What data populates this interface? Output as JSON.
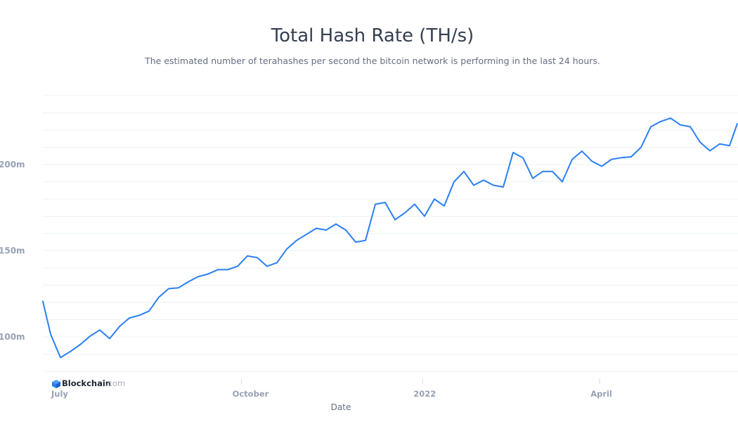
{
  "chart_data": {
    "type": "line",
    "title": "Total Hash Rate (TH/s)",
    "subtitle": "The estimated number of terahashes per second the bitcoin network is performing in the last 24 hours.",
    "xlabel": "Date",
    "ylabel": "",
    "x_tick_labels": [
      {
        "date": "2021-07-01",
        "label": "July"
      },
      {
        "date": "2021-10-01",
        "label": "October"
      },
      {
        "date": "2022-01-01",
        "label": "2022"
      },
      {
        "date": "2022-04-01",
        "label": "April"
      }
    ],
    "y_tick_labels": [
      {
        "value": 100,
        "label": "100m"
      },
      {
        "value": 150,
        "label": "150m"
      },
      {
        "value": 200,
        "label": "200m"
      }
    ],
    "y_unit": "millions TH/s",
    "ylim": [
      80,
      240
    ],
    "xlim": [
      "2021-06-22",
      "2022-06-10"
    ],
    "grid": true,
    "grid_step": 20,
    "line_color": "#2a7ff5",
    "series": [
      {
        "points": [
          [
            "2021-06-22",
            121
          ],
          [
            "2021-06-26",
            101.6
          ],
          [
            "2021-07-01",
            88
          ],
          [
            "2021-07-06",
            91.5
          ],
          [
            "2021-07-11",
            95.5
          ],
          [
            "2021-07-16",
            100.4
          ],
          [
            "2021-07-21",
            104
          ],
          [
            "2021-07-26",
            99
          ],
          [
            "2021-07-31",
            106
          ],
          [
            "2021-08-05",
            111
          ],
          [
            "2021-08-10",
            112.5
          ],
          [
            "2021-08-15",
            115
          ],
          [
            "2021-08-20",
            123
          ],
          [
            "2021-08-25",
            128
          ],
          [
            "2021-08-30",
            128.5
          ],
          [
            "2021-09-04",
            132
          ],
          [
            "2021-09-09",
            135
          ],
          [
            "2021-09-14",
            136.5
          ],
          [
            "2021-09-19",
            139
          ],
          [
            "2021-09-24",
            139
          ],
          [
            "2021-09-29",
            141
          ],
          [
            "2021-10-04",
            147
          ],
          [
            "2021-10-09",
            146
          ],
          [
            "2021-10-14",
            141
          ],
          [
            "2021-10-19",
            143
          ],
          [
            "2021-10-24",
            151
          ],
          [
            "2021-10-29",
            156
          ],
          [
            "2021-11-03",
            159.5
          ],
          [
            "2021-11-08",
            163
          ],
          [
            "2021-11-13",
            162
          ],
          [
            "2021-11-18",
            165.5
          ],
          [
            "2021-11-23",
            162
          ],
          [
            "2021-11-28",
            155
          ],
          [
            "2021-12-03",
            156
          ],
          [
            "2021-12-08",
            177
          ],
          [
            "2021-12-13",
            178
          ],
          [
            "2021-12-18",
            168
          ],
          [
            "2021-12-23",
            172
          ],
          [
            "2021-12-28",
            177
          ],
          [
            "2022-01-02",
            170
          ],
          [
            "2022-01-07",
            180
          ],
          [
            "2022-01-12",
            176
          ],
          [
            "2022-01-17",
            190
          ],
          [
            "2022-01-22",
            196
          ],
          [
            "2022-01-27",
            188
          ],
          [
            "2022-02-01",
            191
          ],
          [
            "2022-02-06",
            188
          ],
          [
            "2022-02-11",
            187
          ],
          [
            "2022-02-16",
            207
          ],
          [
            "2022-02-21",
            204
          ],
          [
            "2022-02-26",
            192
          ],
          [
            "2022-03-03",
            196
          ],
          [
            "2022-03-08",
            196
          ],
          [
            "2022-03-13",
            190
          ],
          [
            "2022-03-18",
            203
          ],
          [
            "2022-03-23",
            207.8
          ],
          [
            "2022-03-28",
            202
          ],
          [
            "2022-04-02",
            199
          ],
          [
            "2022-04-07",
            203
          ],
          [
            "2022-04-12",
            204
          ],
          [
            "2022-04-17",
            204.5
          ],
          [
            "2022-04-22",
            210
          ],
          [
            "2022-04-27",
            222
          ],
          [
            "2022-05-02",
            225
          ],
          [
            "2022-05-07",
            227
          ],
          [
            "2022-05-12",
            223
          ],
          [
            "2022-05-17",
            222
          ],
          [
            "2022-05-22",
            213
          ],
          [
            "2022-05-27",
            208
          ],
          [
            "2022-06-01",
            212
          ],
          [
            "2022-06-06",
            211
          ],
          [
            "2022-06-10",
            224
          ]
        ]
      }
    ]
  },
  "branding": {
    "name": "Blockchain",
    "suffix": ".com"
  }
}
